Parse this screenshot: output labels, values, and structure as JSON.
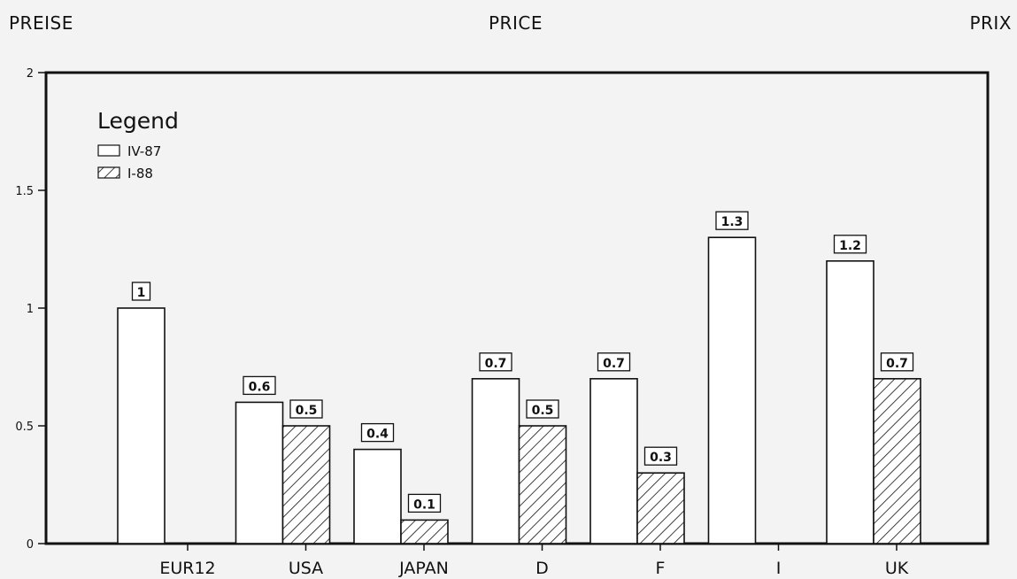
{
  "header": {
    "left": "PREISE",
    "center": "PRICE",
    "right": "PRIX"
  },
  "chart_data": {
    "type": "bar",
    "categories": [
      "EUR12",
      "USA",
      "JAPAN",
      "D",
      "F",
      "I",
      "UK"
    ],
    "series": [
      {
        "name": "IV-87",
        "values": [
          1,
          0.6,
          0.4,
          0.7,
          0.7,
          1.3,
          1.2
        ],
        "labels": [
          "1",
          "0.6",
          "0.4",
          "0.7",
          "0.7",
          "1.3",
          "1.2"
        ],
        "fill": "white"
      },
      {
        "name": "I-88",
        "values": [
          null,
          0.5,
          0.1,
          0.5,
          0.3,
          null,
          0.7
        ],
        "labels": [
          "",
          "0.5",
          "0.1",
          "0.5",
          "0.3",
          "",
          "0.7"
        ],
        "fill": "hatched"
      }
    ],
    "ylim": [
      0,
      2
    ],
    "yticks": [
      0,
      0.5,
      1,
      1.5,
      2
    ],
    "ytick_labels": [
      "0",
      "0.5",
      "1",
      "1.5",
      "2"
    ],
    "legend": {
      "title": "Legend",
      "placement": "top-left"
    },
    "grid": false
  }
}
